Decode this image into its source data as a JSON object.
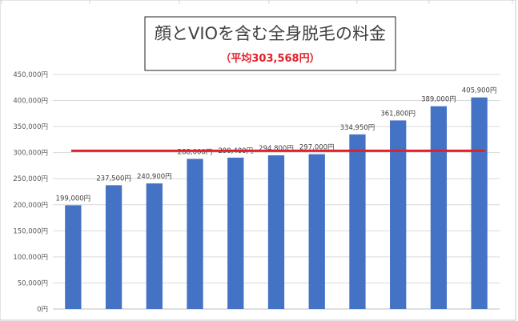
{
  "colors": {
    "bar": "#4472c4",
    "average_line": "#e0202a",
    "subtitle": "#e0202a",
    "gridline": "#d9d9d9"
  },
  "chart_data": {
    "type": "bar",
    "title": "顔とVIOを含む全身脱毛の料金",
    "subtitle": "（平均303,568円）",
    "categories": [
      "",
      "",
      "",
      "",
      "",
      "",
      "",
      "",
      "",
      "",
      ""
    ],
    "values": [
      199000,
      237500,
      240900,
      288000,
      290400,
      294800,
      297000,
      334950,
      361800,
      389000,
      405900
    ],
    "data_labels": [
      "199,000円",
      "237,500円",
      "240,900円",
      "288,000円",
      "290,400円",
      "294,800円",
      "297,000円",
      "334,950円",
      "361,800円",
      "389,000円",
      "405,900円"
    ],
    "average_value": 303568,
    "ylim": [
      0,
      450000
    ],
    "yticks": [
      0,
      50000,
      100000,
      150000,
      200000,
      250000,
      300000,
      350000,
      400000,
      450000
    ],
    "ytick_labels": [
      "0円",
      "50,000円",
      "100,000円",
      "150,000円",
      "200,000円",
      "250,000円",
      "300,000円",
      "350,000円",
      "400,000円",
      "450,000円"
    ],
    "xlabel": "",
    "ylabel": "",
    "grid": true,
    "legend": "none"
  }
}
